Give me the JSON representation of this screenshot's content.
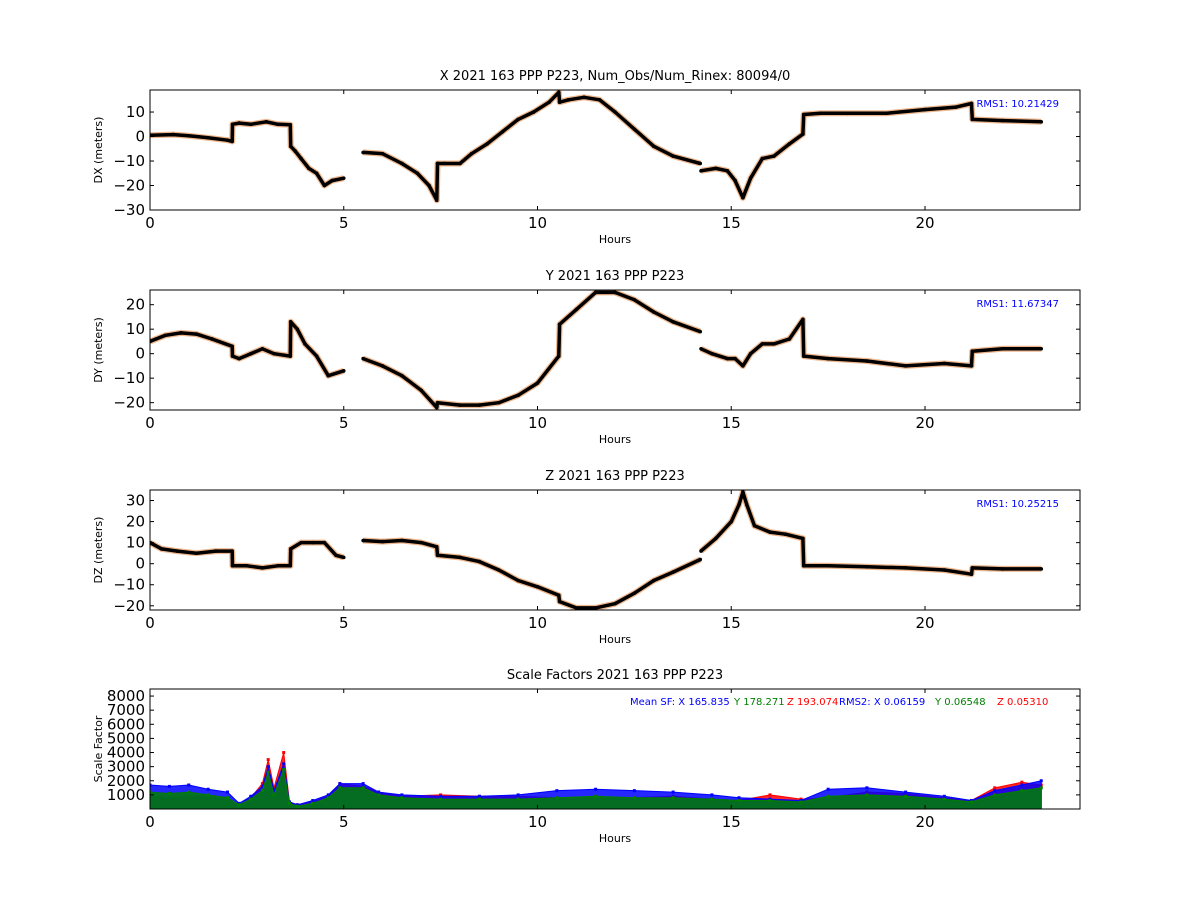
{
  "figure": {
    "background": "#ffffff"
  },
  "chart_data": [
    {
      "type": "scatter",
      "title": "X 2021 163 PPP  P223, Num_Obs/Num_Rinex: 80094/0",
      "xlabel": "Hours",
      "ylabel": "DX (meters)",
      "xlim": [
        0,
        24
      ],
      "ylim": [
        -30,
        19
      ],
      "xticks": [
        0,
        5,
        10,
        15,
        20
      ],
      "yticks": [
        -30,
        -20,
        -10,
        0,
        10
      ],
      "annotations": [
        {
          "text": "RMS1: 10.21429",
          "color": "#0000ff"
        }
      ],
      "series": [
        {
          "color": "#000000",
          "x": [
            0,
            0.6,
            1.0,
            1.5,
            2.0,
            2.12,
            2.13,
            2.3,
            2.6,
            3.0,
            3.3,
            3.62,
            3.63,
            3.75,
            3.9,
            4.1,
            4.3,
            4.5,
            4.7,
            5.0
          ],
          "y": [
            0.5,
            0.8,
            0.3,
            -0.5,
            -1.5,
            -2,
            5,
            5.5,
            5,
            6,
            5,
            4.8,
            -4,
            -6,
            -9,
            -13,
            -15,
            -20,
            -18,
            -17
          ]
        },
        {
          "color": "#000000",
          "x": [
            5.5,
            6.0,
            6.5,
            6.9,
            7.2,
            7.4,
            7.42,
            7.6,
            8.0,
            8.3,
            8.7,
            9.1,
            9.5,
            9.9,
            10.3,
            10.55,
            10.57,
            10.8,
            11.2,
            11.6,
            12.0,
            12.5,
            13.0,
            13.5,
            14.2
          ],
          "y": [
            -6.5,
            -7,
            -11,
            -15,
            -20,
            -26,
            -11,
            -11,
            -11,
            -7,
            -3,
            2,
            7,
            10,
            14,
            18,
            14,
            15,
            16,
            15,
            10,
            3,
            -4,
            -8,
            -11
          ]
        },
        {
          "color": "#000000",
          "x": [
            14.22,
            14.6,
            14.9,
            15.1,
            15.3,
            15.5,
            15.8,
            16.1,
            16.5,
            16.85,
            16.87,
            17.3,
            18,
            19,
            20,
            20.8,
            21.2,
            21.22,
            22,
            23
          ],
          "y": [
            -14,
            -13,
            -14,
            -18,
            -25,
            -17,
            -9,
            -8,
            -3,
            1,
            9,
            9.5,
            9.5,
            9.5,
            11,
            12,
            13.5,
            7,
            6.5,
            6
          ]
        }
      ]
    },
    {
      "type": "scatter",
      "title": "Y 2021 163 PPP  P223",
      "xlabel": "Hours",
      "ylabel": "DY (meters)",
      "xlim": [
        0,
        24
      ],
      "ylim": [
        -23,
        26
      ],
      "xticks": [
        0,
        5,
        10,
        15,
        20
      ],
      "yticks": [
        -20,
        -10,
        0,
        10,
        20
      ],
      "annotations": [
        {
          "text": "RMS1: 11.67347",
          "color": "#0000ff"
        }
      ],
      "series": [
        {
          "color": "#000000",
          "x": [
            0,
            0.4,
            0.8,
            1.2,
            1.6,
            2.12,
            2.13,
            2.3,
            2.6,
            2.9,
            3.2,
            3.62,
            3.63,
            3.8,
            4.0,
            4.3,
            4.6,
            5.0
          ],
          "y": [
            5,
            7.5,
            8.5,
            8,
            6,
            3,
            -1,
            -2,
            0,
            2,
            0,
            -1,
            13,
            10,
            4,
            -1,
            -9,
            -7
          ]
        },
        {
          "color": "#000000",
          "x": [
            5.5,
            6.0,
            6.5,
            7.0,
            7.4,
            7.42,
            8.0,
            8.5,
            9.0,
            9.5,
            10.0,
            10.55,
            10.57,
            11.0,
            11.5,
            12.0,
            12.5,
            13.0,
            13.5,
            14.2
          ],
          "y": [
            -2,
            -5,
            -9,
            -15,
            -22,
            -20,
            -21,
            -21,
            -20,
            -17,
            -12,
            -1,
            12,
            18,
            25,
            25,
            22,
            17,
            13,
            9
          ]
        },
        {
          "color": "#000000",
          "x": [
            14.22,
            14.5,
            14.9,
            15.1,
            15.3,
            15.5,
            15.8,
            16.1,
            16.5,
            16.85,
            16.87,
            17.5,
            18.5,
            19.5,
            20.5,
            21.2,
            21.22,
            22,
            23
          ],
          "y": [
            2,
            0,
            -2,
            -2,
            -5,
            0,
            4,
            4,
            6,
            14,
            -1,
            -2,
            -3,
            -5,
            -4,
            -5,
            1,
            2,
            2
          ]
        }
      ]
    },
    {
      "type": "scatter",
      "title": "Z 2021 163 PPP  P223",
      "xlabel": "Hours",
      "ylabel": "DZ (meters)",
      "xlim": [
        0,
        24
      ],
      "ylim": [
        -22,
        35
      ],
      "xticks": [
        0,
        5,
        10,
        15,
        20
      ],
      "yticks": [
        -20,
        -10,
        0,
        10,
        20,
        30
      ],
      "annotations": [
        {
          "text": "RMS1: 10.25215",
          "color": "#0000ff"
        }
      ],
      "series": [
        {
          "color": "#000000",
          "x": [
            0,
            0.3,
            0.7,
            1.2,
            1.7,
            2.12,
            2.13,
            2.5,
            2.9,
            3.3,
            3.62,
            3.63,
            3.9,
            4.2,
            4.5,
            4.8,
            5.0
          ],
          "y": [
            10,
            7,
            6,
            5,
            6,
            6,
            -1,
            -1,
            -2,
            -1,
            -1,
            7,
            10,
            10,
            10,
            4,
            3
          ]
        },
        {
          "color": "#000000",
          "x": [
            5.5,
            6.0,
            6.5,
            7.0,
            7.4,
            7.42,
            8.0,
            8.5,
            9.0,
            9.5,
            10.0,
            10.55,
            10.57,
            11.0,
            11.5,
            12.0,
            12.5,
            13.0,
            13.5,
            14.2
          ],
          "y": [
            11,
            10.5,
            11,
            10,
            8,
            4,
            3,
            1,
            -3,
            -8,
            -11,
            -15,
            -18,
            -21,
            -21,
            -19,
            -14,
            -8,
            -4,
            2
          ]
        },
        {
          "color": "#000000",
          "x": [
            14.22,
            14.6,
            15.0,
            15.2,
            15.3,
            15.4,
            15.6,
            16.0,
            16.4,
            16.85,
            16.87,
            17.5,
            18.5,
            19.5,
            20.5,
            21.2,
            21.22,
            22,
            23
          ],
          "y": [
            6,
            12,
            20,
            28,
            34,
            28,
            18,
            15,
            14,
            12,
            -1,
            -1,
            -1.5,
            -2,
            -3,
            -5,
            -2,
            -2.5,
            -2.5
          ]
        }
      ]
    },
    {
      "type": "scatter",
      "title": "Scale Factors 2021 163 PPP  P223",
      "xlabel": "Hours",
      "ylabel": "Scale Factor",
      "xlim": [
        0,
        24
      ],
      "ylim": [
        0,
        8500
      ],
      "xticks": [
        0,
        5,
        10,
        15,
        20
      ],
      "yticks": [
        1000,
        2000,
        3000,
        4000,
        5000,
        6000,
        7000,
        8000
      ],
      "annotations": [
        {
          "text": "Mean SF: X 165.835",
          "color": "#0000ff"
        },
        {
          "text": "Y 178.271",
          "color": "#008000"
        },
        {
          "text": "Z 193.074",
          "color": "#ff0000"
        },
        {
          "text": "RMS2: X  0.06159",
          "color": "#0000ff"
        },
        {
          "text": "Y  0.06548",
          "color": "#008000"
        },
        {
          "text": "Z  0.05310",
          "color": "#ff0000"
        }
      ],
      "series": [
        {
          "color": "#ff0000",
          "x": [
            0,
            0.5,
            1,
            1.5,
            2,
            2.3,
            2.6,
            2.9,
            3.05,
            3.2,
            3.45,
            3.6,
            3.8,
            4.2,
            4.6,
            4.9,
            5.5,
            5.9,
            6.5,
            7.5,
            8.5,
            9.5,
            10.5,
            11.5,
            12.5,
            13.5,
            14.5,
            15.2,
            16,
            16.8,
            17.5,
            18.5,
            19.5,
            20.5,
            21.2,
            21.8,
            22.5,
            23
          ],
          "y": [
            900,
            800,
            900,
            900,
            700,
            300,
            800,
            1800,
            3500,
            1500,
            4000,
            500,
            300,
            500,
            900,
            1800,
            1600,
            1200,
            900,
            1000,
            900,
            900,
            800,
            800,
            800,
            900,
            700,
            600,
            1000,
            700,
            800,
            1200,
            1100,
            800,
            600,
            1500,
            1900,
            1700
          ]
        },
        {
          "color": "#0000ff",
          "x": [
            0,
            0.5,
            1,
            1.5,
            2,
            2.3,
            2.6,
            2.9,
            3.05,
            3.2,
            3.45,
            3.6,
            3.8,
            4.2,
            4.6,
            4.9,
            5.5,
            5.9,
            6.5,
            7.5,
            8.5,
            9.5,
            10.5,
            11.5,
            12.5,
            13.5,
            14.5,
            15.2,
            16,
            16.8,
            17.5,
            18.5,
            19.5,
            20.5,
            21.2,
            21.8,
            22.5,
            23
          ],
          "y": [
            1700,
            1600,
            1700,
            1400,
            1200,
            400,
            900,
            1600,
            3000,
            1300,
            3200,
            500,
            300,
            600,
            1000,
            1800,
            1800,
            1200,
            1000,
            900,
            900,
            1000,
            1300,
            1400,
            1300,
            1200,
            1000,
            800,
            700,
            600,
            1400,
            1500,
            1200,
            900,
            600,
            1300,
            1700,
            2000
          ]
        },
        {
          "color": "#008000",
          "x": [
            0,
            0.5,
            1,
            1.5,
            2,
            2.3,
            2.6,
            2.9,
            3.05,
            3.2,
            3.45,
            3.6,
            3.8,
            4.2,
            4.6,
            4.9,
            5.5,
            5.9,
            6.5,
            7.5,
            8.5,
            9.5,
            10.5,
            11.5,
            12.5,
            13.5,
            14.5,
            15.2,
            16,
            16.8,
            17.5,
            18.5,
            19.5,
            20.5,
            21.2,
            21.8,
            22.5,
            23
          ],
          "y": [
            1200,
            1100,
            1200,
            1000,
            800,
            300,
            700,
            1300,
            2600,
            1000,
            2800,
            400,
            200,
            400,
            800,
            1500,
            1500,
            1000,
            800,
            700,
            700,
            700,
            800,
            900,
            800,
            800,
            700,
            600,
            600,
            500,
            900,
            1000,
            900,
            700,
            500,
            1000,
            1300,
            1500
          ]
        }
      ]
    }
  ]
}
